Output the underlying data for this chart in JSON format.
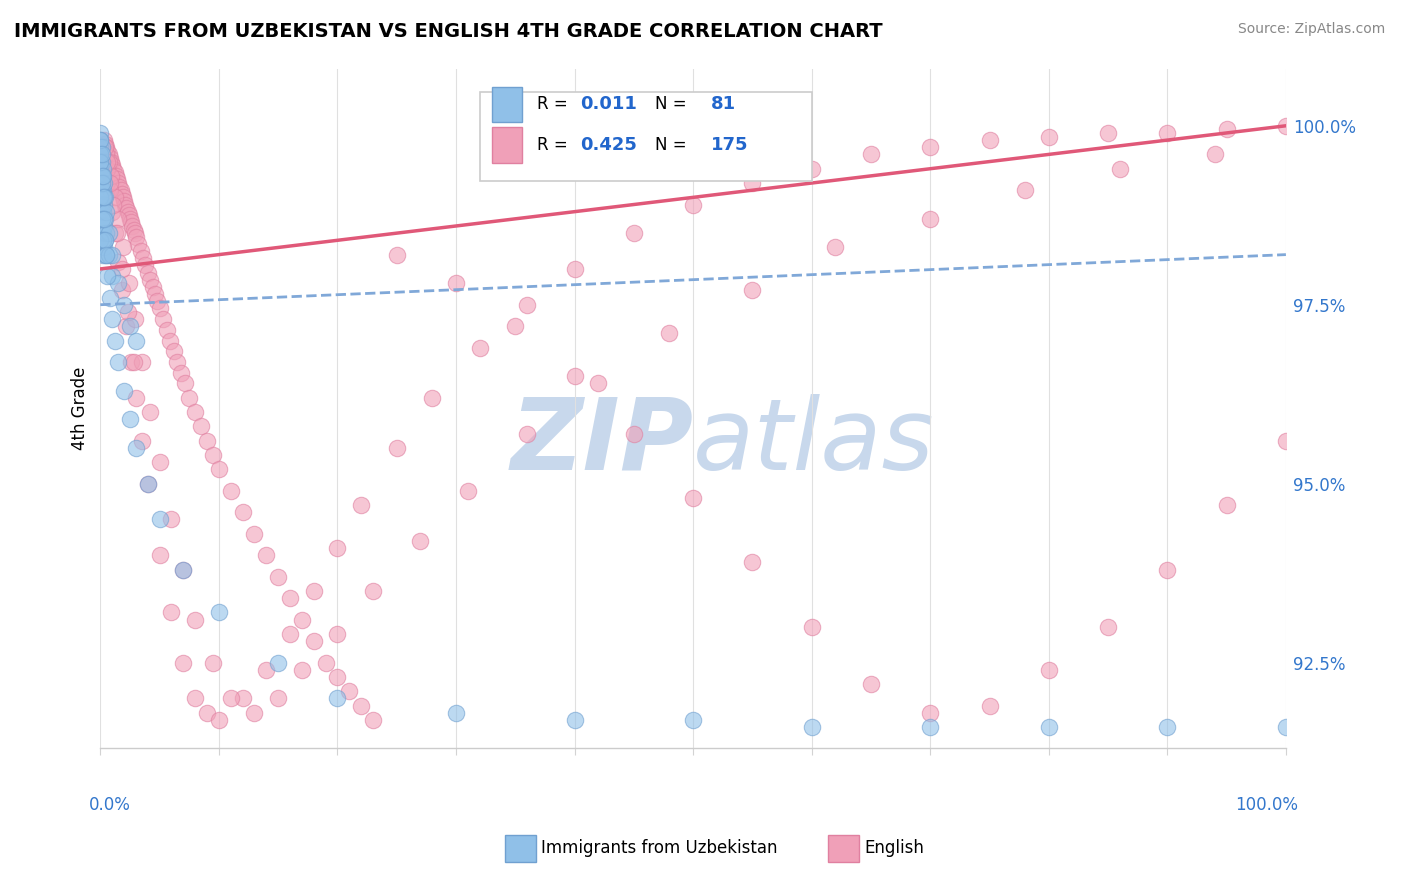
{
  "title": "IMMIGRANTS FROM UZBEKISTAN VS ENGLISH 4TH GRADE CORRELATION CHART",
  "source": "Source: ZipAtlas.com",
  "ylabel": "4th Grade",
  "yaxis_values": [
    92.5,
    95.0,
    97.5,
    100.0
  ],
  "blue_color": "#90c0e8",
  "pink_color": "#f0a0b8",
  "blue_edge_color": "#70a0d0",
  "pink_edge_color": "#e080a0",
  "blue_line_color": "#80a8d8",
  "pink_line_color": "#e05878",
  "watermark_color": "#c8d8ec",
  "xlim": [
    0.0,
    1.0
  ],
  "ylim": [
    91.3,
    100.8
  ],
  "blue_trend": [
    0.0,
    1.0,
    97.5,
    98.2
  ],
  "pink_trend": [
    0.0,
    1.0,
    98.0,
    100.0
  ],
  "blue_scatter_x": [
    0.0,
    0.0,
    0.0,
    0.0,
    0.0,
    0.0,
    0.0,
    0.0,
    0.0,
    0.0,
    0.0,
    0.0,
    0.001,
    0.001,
    0.001,
    0.001,
    0.001,
    0.001,
    0.001,
    0.002,
    0.002,
    0.002,
    0.002,
    0.002,
    0.003,
    0.003,
    0.003,
    0.003,
    0.004,
    0.004,
    0.004,
    0.005,
    0.005,
    0.005,
    0.007,
    0.007,
    0.01,
    0.01,
    0.015,
    0.02,
    0.025,
    0.03,
    0.0,
    0.0,
    0.0,
    0.001,
    0.001,
    0.002,
    0.002,
    0.003,
    0.004,
    0.005,
    0.006,
    0.008,
    0.01,
    0.012,
    0.015,
    0.02,
    0.025,
    0.03,
    0.04,
    0.05,
    0.07,
    0.1,
    0.15,
    0.2,
    0.3,
    0.4,
    0.5,
    0.6,
    0.7,
    0.8,
    0.9,
    1.0,
    0.0,
    0.0,
    0.001,
    0.001,
    0.002,
    0.003
  ],
  "blue_scatter_y": [
    99.9,
    99.8,
    99.7,
    99.6,
    99.5,
    99.4,
    99.3,
    99.2,
    99.1,
    99.0,
    98.9,
    98.8,
    99.7,
    99.5,
    99.3,
    99.1,
    98.9,
    98.7,
    98.5,
    99.4,
    99.1,
    98.8,
    98.5,
    98.2,
    99.2,
    98.9,
    98.6,
    98.3,
    99.0,
    98.7,
    98.4,
    98.8,
    98.5,
    98.2,
    98.5,
    98.2,
    98.2,
    97.9,
    97.8,
    97.5,
    97.2,
    97.0,
    99.6,
    99.0,
    98.4,
    99.3,
    98.7,
    99.0,
    98.4,
    98.7,
    98.4,
    98.2,
    97.9,
    97.6,
    97.3,
    97.0,
    96.7,
    96.3,
    95.9,
    95.5,
    95.0,
    94.5,
    93.8,
    93.2,
    92.5,
    92.0,
    91.8,
    91.7,
    91.7,
    91.6,
    91.6,
    91.6,
    91.6,
    91.6,
    99.8,
    99.5,
    99.6,
    99.2,
    99.3,
    99.0
  ],
  "pink_scatter_x": [
    0.003,
    0.004,
    0.005,
    0.006,
    0.007,
    0.008,
    0.009,
    0.01,
    0.011,
    0.012,
    0.013,
    0.014,
    0.015,
    0.016,
    0.017,
    0.018,
    0.019,
    0.02,
    0.021,
    0.022,
    0.023,
    0.024,
    0.025,
    0.026,
    0.027,
    0.028,
    0.029,
    0.03,
    0.032,
    0.034,
    0.036,
    0.038,
    0.04,
    0.042,
    0.044,
    0.046,
    0.048,
    0.05,
    0.053,
    0.056,
    0.059,
    0.062,
    0.065,
    0.068,
    0.071,
    0.075,
    0.08,
    0.085,
    0.09,
    0.095,
    0.1,
    0.11,
    0.12,
    0.13,
    0.14,
    0.15,
    0.16,
    0.17,
    0.18,
    0.19,
    0.2,
    0.21,
    0.22,
    0.23,
    0.005,
    0.006,
    0.008,
    0.01,
    0.012,
    0.015,
    0.018,
    0.022,
    0.026,
    0.03,
    0.035,
    0.04,
    0.05,
    0.06,
    0.07,
    0.08,
    0.09,
    0.1,
    0.12,
    0.14,
    0.16,
    0.18,
    0.2,
    0.22,
    0.25,
    0.28,
    0.32,
    0.36,
    0.4,
    0.45,
    0.5,
    0.55,
    0.6,
    0.65,
    0.7,
    0.75,
    0.8,
    0.85,
    0.9,
    0.95,
    1.0,
    0.007,
    0.009,
    0.012,
    0.015,
    0.019,
    0.024,
    0.029,
    0.035,
    0.042,
    0.05,
    0.06,
    0.07,
    0.08,
    0.095,
    0.11,
    0.13,
    0.15,
    0.17,
    0.2,
    0.23,
    0.27,
    0.31,
    0.36,
    0.42,
    0.48,
    0.55,
    0.62,
    0.7,
    0.78,
    0.86,
    0.94,
    0.25,
    0.3,
    0.35,
    0.4,
    0.45,
    0.5,
    0.55,
    0.6,
    0.65,
    0.7,
    0.75,
    0.8,
    0.85,
    0.9,
    0.95,
    1.0,
    0.004,
    0.006,
    0.008,
    0.011,
    0.014,
    0.018,
    0.023,
    0.028
  ],
  "pink_scatter_y": [
    99.8,
    99.75,
    99.7,
    99.65,
    99.6,
    99.55,
    99.5,
    99.45,
    99.4,
    99.35,
    99.3,
    99.25,
    99.2,
    99.15,
    99.1,
    99.05,
    99.0,
    98.95,
    98.9,
    98.85,
    98.8,
    98.75,
    98.7,
    98.65,
    98.6,
    98.55,
    98.5,
    98.45,
    98.35,
    98.25,
    98.15,
    98.05,
    97.95,
    97.85,
    97.75,
    97.65,
    97.55,
    97.45,
    97.3,
    97.15,
    97.0,
    96.85,
    96.7,
    96.55,
    96.4,
    96.2,
    96.0,
    95.8,
    95.6,
    95.4,
    95.2,
    94.9,
    94.6,
    94.3,
    94.0,
    93.7,
    93.4,
    93.1,
    92.8,
    92.5,
    92.3,
    92.1,
    91.9,
    91.7,
    99.6,
    99.4,
    99.1,
    98.8,
    98.5,
    98.1,
    97.7,
    97.2,
    96.7,
    96.2,
    95.6,
    95.0,
    94.0,
    93.2,
    92.5,
    92.0,
    91.8,
    91.7,
    92.0,
    92.4,
    92.9,
    93.5,
    94.1,
    94.7,
    95.5,
    96.2,
    96.9,
    97.5,
    98.0,
    98.5,
    98.9,
    99.2,
    99.4,
    99.6,
    99.7,
    99.8,
    99.85,
    99.9,
    99.9,
    99.95,
    100.0,
    99.5,
    99.3,
    99.0,
    98.7,
    98.3,
    97.8,
    97.3,
    96.7,
    96.0,
    95.3,
    94.5,
    93.8,
    93.1,
    92.5,
    92.0,
    91.8,
    92.0,
    92.4,
    92.9,
    93.5,
    94.2,
    94.9,
    95.7,
    96.4,
    97.1,
    97.7,
    98.3,
    98.7,
    99.1,
    99.4,
    99.6,
    98.2,
    97.8,
    97.2,
    96.5,
    95.7,
    94.8,
    93.9,
    93.0,
    92.2,
    91.8,
    91.9,
    92.4,
    93.0,
    93.8,
    94.7,
    95.6,
    99.7,
    99.5,
    99.2,
    98.9,
    98.5,
    98.0,
    97.4,
    96.7
  ]
}
